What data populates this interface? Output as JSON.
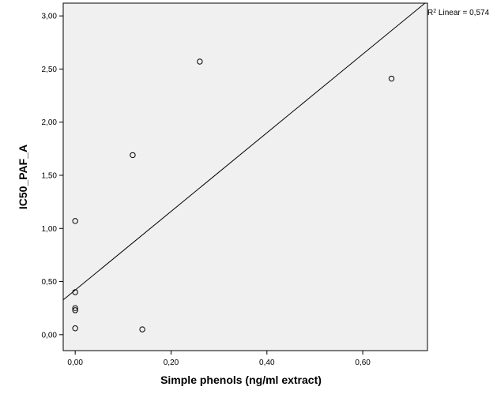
{
  "chart_data": {
    "type": "scatter",
    "title": "",
    "xlabel": "Simple phenols (ng/ml extract)",
    "ylabel": "IC50_PAF_A",
    "xlim": [
      -0.025,
      0.735
    ],
    "ylim": [
      -0.15,
      3.12
    ],
    "x_ticks": [
      0.0,
      0.2,
      0.4,
      0.6
    ],
    "x_tick_labels": [
      "0,00",
      "0,20",
      "0,40",
      "0,60"
    ],
    "y_ticks": [
      0.0,
      0.5,
      1.0,
      1.5,
      2.0,
      2.5,
      3.0
    ],
    "y_tick_labels": [
      "0,00",
      "0,50",
      "1,00",
      "1,50",
      "2,00",
      "2,50",
      "3,00"
    ],
    "points": [
      {
        "x": 0.0,
        "y": 0.06
      },
      {
        "x": 0.0,
        "y": 0.23
      },
      {
        "x": 0.0,
        "y": 0.25
      },
      {
        "x": 0.0,
        "y": 0.4
      },
      {
        "x": 0.0,
        "y": 1.07
      },
      {
        "x": 0.12,
        "y": 1.69
      },
      {
        "x": 0.14,
        "y": 0.05
      },
      {
        "x": 0.26,
        "y": 2.57
      },
      {
        "x": 0.66,
        "y": 2.41
      }
    ],
    "fit_line": {
      "type": "linear",
      "intercept": 0.42,
      "slope": 3.7
    },
    "fit_label": {
      "r_symbol": "R",
      "superscript": "2",
      "text": " Linear = 0,574"
    },
    "grid": false,
    "background": "#f0f0f0",
    "marker_color": "#000000"
  }
}
